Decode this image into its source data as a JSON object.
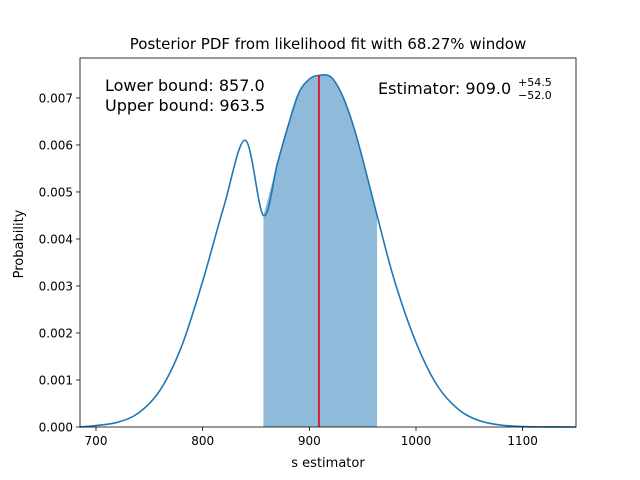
{
  "chart_data": {
    "type": "area",
    "title": "Posterior PDF from likelihood fit with 68.27% window",
    "xlabel": "s estimator",
    "ylabel": "Probability",
    "xlim": [
      685,
      1150
    ],
    "ylim": [
      0,
      0.00785
    ],
    "x_ticks": [
      700,
      800,
      900,
      1000,
      1100
    ],
    "x_tick_labels": [
      "700",
      "800",
      "900",
      "1000",
      "1100"
    ],
    "y_ticks": [
      0,
      0.001,
      0.002,
      0.003,
      0.004,
      0.005,
      0.006,
      0.007
    ],
    "y_tick_labels": [
      "0.000",
      "0.001",
      "0.002",
      "0.003",
      "0.004",
      "0.005",
      "0.006",
      "0.007"
    ],
    "grid": false,
    "series": [
      {
        "color": "#1f77b4",
        "x": [
          685,
          700,
          720,
          740,
          760,
          780,
          800,
          820,
          840,
          857,
          870,
          880,
          890,
          900,
          909,
          920,
          930,
          940,
          950,
          963.5,
          980,
          1000,
          1020,
          1040,
          1060,
          1080,
          1100,
          1120,
          1150
        ],
        "y": [
          0.0,
          3e-05,
          0.0001,
          0.0003,
          0.00078,
          0.0017,
          0.0031,
          0.0047,
          0.0061,
          0.0045,
          0.0056,
          0.0064,
          0.0071,
          0.0074,
          0.00748,
          0.00745,
          0.0071,
          0.0065,
          0.0057,
          0.0045,
          0.0031,
          0.0018,
          0.00088,
          0.00037,
          0.00013,
          4e-05,
          1e-05,
          2e-06,
          0.0
        ]
      }
    ],
    "shaded_window": {
      "lower": 857.0,
      "upper": 963.5,
      "fill_color": "#8fbad9"
    },
    "estimator_line": {
      "x": 909.0,
      "color": "#e8000b"
    },
    "annotations": {
      "lower_bound": "Lower bound: 857.0",
      "upper_bound": "Upper bound: 963.5",
      "estimator_prefix": "Estimator: 909.0",
      "estimator_plus": "+54.5",
      "estimator_minus": "−52.0"
    }
  }
}
